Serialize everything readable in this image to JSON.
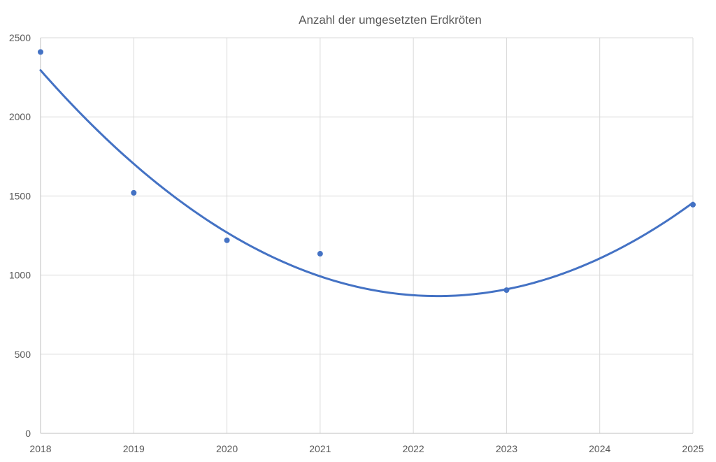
{
  "chart_data": {
    "type": "scatter",
    "title": "Anzahl der umgesetzten Erdkröten",
    "xlabel": "",
    "ylabel": "",
    "xlim": [
      2018,
      2025
    ],
    "ylim": [
      0,
      2500
    ],
    "x_ticks": [
      "2018",
      "2019",
      "2020",
      "2021",
      "2022",
      "2023",
      "2024",
      "2025"
    ],
    "y_ticks": [
      "0",
      "500",
      "1000",
      "1500",
      "2000",
      "2500"
    ],
    "grid": true,
    "legend": "none",
    "series": [
      {
        "points": [
          {
            "x": 2018,
            "y": 2410
          },
          {
            "x": 2019,
            "y": 1520
          },
          {
            "x": 2020,
            "y": 1220
          },
          {
            "x": 2021,
            "y": 1135
          },
          {
            "x": 2023,
            "y": 905
          },
          {
            "x": 2025,
            "y": 1445
          }
        ],
        "color": "#4472c4"
      }
    ],
    "trendline": {
      "type": "polynomial",
      "order": 2,
      "color": "#4472c4",
      "values": [
        {
          "x": 2018,
          "y": 2295
        },
        {
          "x": 2019,
          "y": 1705
        },
        {
          "x": 2020,
          "y": 1265
        },
        {
          "x": 2021,
          "y": 990
        },
        {
          "x": 2022,
          "y": 880
        },
        {
          "x": 2023,
          "y": 905
        },
        {
          "x": 2024,
          "y": 1110
        },
        {
          "x": 2025,
          "y": 1455
        }
      ]
    }
  }
}
